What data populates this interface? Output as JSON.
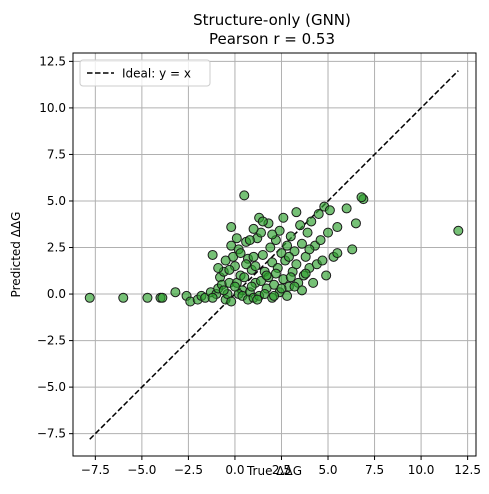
{
  "chart_data": {
    "type": "scatter",
    "title_line1": "Structure-only (GNN)",
    "title_line2": "Pearson r = 0.53",
    "xlabel": "True ΔΔG",
    "ylabel": "Predicted ΔΔG",
    "xlim": [
      -8.7,
      12.95
    ],
    "ylim": [
      -8.7,
      12.95
    ],
    "xticks": [
      -7.5,
      -5.0,
      -2.5,
      0.0,
      2.5,
      5.0,
      7.5,
      10.0,
      12.5
    ],
    "xtick_labels": [
      "−7.5",
      "−5.0",
      "−2.5",
      "0.0",
      "2.5",
      "5.0",
      "7.5",
      "10.0",
      "12.5"
    ],
    "yticks": [
      -7.5,
      -5.0,
      -2.5,
      0.0,
      2.5,
      5.0,
      7.5,
      10.0,
      12.5
    ],
    "ytick_labels": [
      "−7.5",
      "−5.0",
      "−2.5",
      "0.0",
      "2.5",
      "5.0",
      "7.5",
      "10.0",
      "12.5"
    ],
    "grid": true,
    "legend": {
      "label": "Ideal: y = x",
      "placement": "top-left"
    },
    "ideal_line": {
      "from": -7.8,
      "to": 12.0,
      "color": "#000000",
      "style": "dashed"
    },
    "point_color": "#2ca02c",
    "point_edge_color": "#1a1a1a",
    "points": [
      [
        -7.8,
        -0.2
      ],
      [
        -6.0,
        -0.2
      ],
      [
        -4.7,
        -0.2
      ],
      [
        -4.0,
        -0.2
      ],
      [
        -3.9,
        -0.2
      ],
      [
        -3.2,
        0.1
      ],
      [
        -2.6,
        -0.1
      ],
      [
        -2.4,
        -0.4
      ],
      [
        -2.0,
        -0.3
      ],
      [
        -1.8,
        -0.1
      ],
      [
        -1.6,
        -0.2
      ],
      [
        -1.3,
        0.1
      ],
      [
        -1.0,
        0.0
      ],
      [
        -1.2,
        -0.2
      ],
      [
        -0.9,
        0.3
      ],
      [
        -0.8,
        0.9
      ],
      [
        -0.6,
        1.2
      ],
      [
        -0.7,
        0.5
      ],
      [
        -0.5,
        -0.3
      ],
      [
        -0.4,
        0.0
      ],
      [
        -0.3,
        0.6
      ],
      [
        -0.2,
        3.6
      ],
      [
        -0.2,
        2.6
      ],
      [
        -0.1,
        2.0
      ],
      [
        -1.2,
        2.1
      ],
      [
        -0.9,
        1.4
      ],
      [
        -0.5,
        1.8
      ],
      [
        0.0,
        1.5
      ],
      [
        0.1,
        0.6
      ],
      [
        0.2,
        2.4
      ],
      [
        0.3,
        1.0
      ],
      [
        0.4,
        0.2
      ],
      [
        0.5,
        5.3
      ],
      [
        0.6,
        2.8
      ],
      [
        0.7,
        1.9
      ],
      [
        0.8,
        0.1
      ],
      [
        0.9,
        1.3
      ],
      [
        1.0,
        2.0
      ],
      [
        1.1,
        0.6
      ],
      [
        1.2,
        3.0
      ],
      [
        1.3,
        4.1
      ],
      [
        1.4,
        3.3
      ],
      [
        1.5,
        2.1
      ],
      [
        1.6,
        1.2
      ],
      [
        1.7,
        0.3
      ],
      [
        1.8,
        3.8
      ],
      [
        1.9,
        2.5
      ],
      [
        2.0,
        1.7
      ],
      [
        2.1,
        0.5
      ],
      [
        2.2,
        2.9
      ],
      [
        2.3,
        1.4
      ],
      [
        2.4,
        3.4
      ],
      [
        2.5,
        2.2
      ],
      [
        2.6,
        0.8
      ],
      [
        2.7,
        1.8
      ],
      [
        2.8,
        2.6
      ],
      [
        2.9,
        0.4
      ],
      [
        3.0,
        3.1
      ],
      [
        3.1,
        1.2
      ],
      [
        3.2,
        2.3
      ],
      [
        3.3,
        1.6
      ],
      [
        3.4,
        0.6
      ],
      [
        3.5,
        3.7
      ],
      [
        3.6,
        2.7
      ],
      [
        3.7,
        1.0
      ],
      [
        3.8,
        2.0
      ],
      [
        3.9,
        3.3
      ],
      [
        4.0,
        1.4
      ],
      [
        4.1,
        3.9
      ],
      [
        4.3,
        2.6
      ],
      [
        4.4,
        1.6
      ],
      [
        4.5,
        4.3
      ],
      [
        4.6,
        2.9
      ],
      [
        4.7,
        1.8
      ],
      [
        4.8,
        4.7
      ],
      [
        5.0,
        3.3
      ],
      [
        5.1,
        4.5
      ],
      [
        5.3,
        2.0
      ],
      [
        5.5,
        3.6
      ],
      [
        6.0,
        4.6
      ],
      [
        6.5,
        3.8
      ],
      [
        6.9,
        5.1
      ],
      [
        6.8,
        5.2
      ],
      [
        6.3,
        2.4
      ],
      [
        12.0,
        3.4
      ],
      [
        0.2,
        0.0
      ],
      [
        0.4,
        -0.1
      ],
      [
        0.7,
        -0.3
      ],
      [
        1.0,
        -0.2
      ],
      [
        1.3,
        -0.1
      ],
      [
        1.6,
        0.0
      ],
      [
        2.0,
        -0.2
      ],
      [
        2.4,
        0.1
      ],
      [
        2.8,
        -0.1
      ],
      [
        -0.3,
        1.3
      ],
      [
        0.1,
        3.0
      ],
      [
        0.8,
        2.9
      ],
      [
        1.5,
        3.9
      ],
      [
        2.6,
        4.1
      ],
      [
        3.3,
        4.4
      ],
      [
        1.1,
        1.5
      ],
      [
        1.8,
        0.9
      ],
      [
        2.2,
        1.1
      ],
      [
        0.5,
        0.9
      ],
      [
        0.0,
        0.4
      ],
      [
        -0.2,
        -0.4
      ],
      [
        3.6,
        0.2
      ],
      [
        4.2,
        0.6
      ],
      [
        0.9,
        0.4
      ],
      [
        1.4,
        0.7
      ],
      [
        2.5,
        0.3
      ],
      [
        3.0,
        0.9
      ],
      [
        3.8,
        1.1
      ],
      [
        4.9,
        1.0
      ],
      [
        5.5,
        2.2
      ],
      [
        4.0,
        2.4
      ],
      [
        2.9,
        2.0
      ],
      [
        1.7,
        1.0
      ],
      [
        0.6,
        1.6
      ],
      [
        -0.6,
        0.2
      ],
      [
        1.2,
        -0.3
      ],
      [
        2.1,
        -0.1
      ],
      [
        3.2,
        0.4
      ],
      [
        0.3,
        2.2
      ],
      [
        1.0,
        3.5
      ],
      [
        2.0,
        3.2
      ]
    ]
  }
}
